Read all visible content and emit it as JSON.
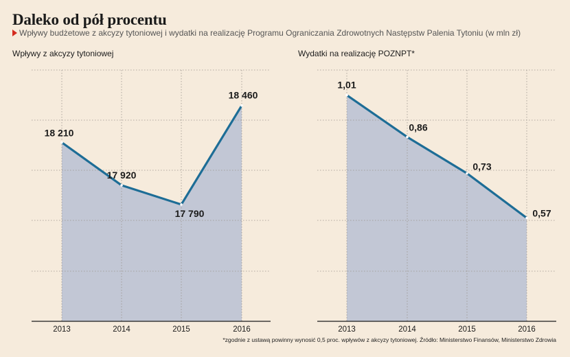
{
  "title": "Daleko od pół procentu",
  "subtitle": "Wpływy budżetowe z akcyzy tytoniowej i wydatki na realizację Programu Ograniczania Zdrowotnych Następstw Palenia Tytoniu (w mln zł)",
  "footnote": "*zgodnie z ustawą powinny wynosić 0,5 proc. wpływów z akcyzy tytoniowej. Źródło: Ministerstwo Finansów, Ministerstwo Zdrowia",
  "colors": {
    "line": "#1d6d96",
    "area": "#c2c7d5",
    "background": "#f6ebdc",
    "accent": "#d42a1e"
  },
  "chart_data": [
    {
      "type": "area",
      "title": "Wpływy z akcyzy tytoniowej",
      "categories": [
        "2013",
        "2014",
        "2015",
        "2016"
      ],
      "values": [
        18210,
        17920,
        17790,
        18460
      ],
      "labels": [
        "18 210",
        "17 920",
        "17 790",
        "18 460"
      ],
      "ylim": [
        17000,
        18700
      ],
      "grid": true,
      "xlabel": "",
      "ylabel": ""
    },
    {
      "type": "area",
      "title": "Wydatki na realizację POZNPT*",
      "categories": [
        "2013",
        "2014",
        "2015",
        "2016"
      ],
      "values": [
        1.01,
        0.86,
        0.73,
        0.57
      ],
      "labels": [
        "1,01",
        "0,86",
        "0,73",
        "0,57"
      ],
      "ylim": [
        0.2,
        1.1
      ],
      "grid": true,
      "xlabel": "",
      "ylabel": ""
    }
  ]
}
